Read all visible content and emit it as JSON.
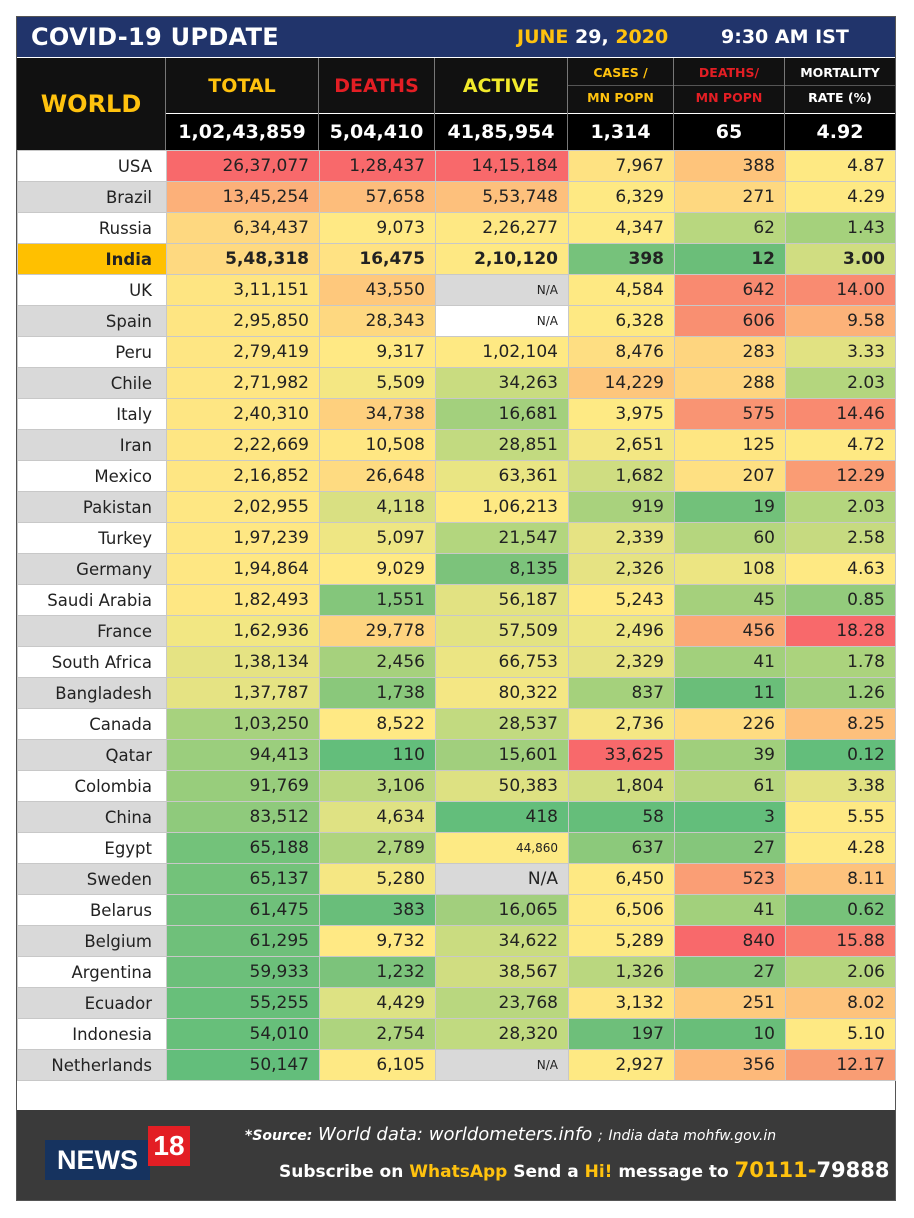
{
  "header": {
    "title": "COVID-19 UPDATE",
    "date_month": "JUNE",
    "date_day": "29,",
    "date_year": "2020",
    "time": "9:30 AM IST"
  },
  "columns": {
    "world": "WORLD",
    "total": "TOTAL",
    "deaths": "DEATHS",
    "active": "ACTIVE",
    "cases_mn_1": "CASES /",
    "cases_mn_2": "MN POPN",
    "deaths_mn_1": "DEATHS/",
    "deaths_mn_2": "MN POPN",
    "mortality_1": "MORTALITY",
    "mortality_2": "RATE (%)"
  },
  "world_totals": {
    "total": "1,02,43,859",
    "deaths": "5,04,410",
    "active": "41,85,954",
    "cases_mn": "1,314",
    "deaths_mn": "65",
    "mortality": "4.92"
  },
  "colors": {
    "header_navy": "#21346b",
    "accent_yellow": "#ffc20e",
    "accent_red": "#e31e24",
    "highlight_row": "#ffc000",
    "heat_green": "#6bbf73",
    "heat_yellow": "#ffe584",
    "heat_red": "#f8696b"
  },
  "rows": [
    {
      "country": "USA",
      "total": "26,37,077",
      "deaths": "1,28,437",
      "active": "14,15,184",
      "cases_mn": "7,967",
      "deaths_mn": "388",
      "mortality": "4.87",
      "bg": [
        "#f8696b",
        "#f8696b",
        "#f8696b",
        "#fee282",
        "#fec47b",
        "#fee983"
      ]
    },
    {
      "country": "Brazil",
      "total": "13,45,254",
      "deaths": "57,658",
      "active": "5,53,748",
      "cases_mn": "6,329",
      "deaths_mn": "271",
      "mortality": "4.29",
      "bg": [
        "#fcb079",
        "#fdbd7b",
        "#fdc07c",
        "#fee983",
        "#fed880",
        "#fee983"
      ]
    },
    {
      "country": "Russia",
      "total": "6,34,437",
      "deaths": "9,073",
      "active": "2,26,277",
      "cases_mn": "4,347",
      "deaths_mn": "62",
      "mortality": "1.43",
      "bg": [
        "#fed880",
        "#ffe984",
        "#fee883",
        "#feea84",
        "#b8d77f",
        "#a5d17c"
      ]
    },
    {
      "country": "India",
      "total": "5,48,318",
      "deaths": "16,475",
      "active": "2,10,120",
      "cases_mn": "398",
      "deaths_mn": "12",
      "mortality": "3.00",
      "bg": [
        "#fed980",
        "#ffe283",
        "#fee883",
        "#76c27b",
        "#6bbe79",
        "#d0dd81"
      ]
    },
    {
      "country": "UK",
      "total": "3,11,151",
      "deaths": "43,550",
      "active": "N/A",
      "cases_mn": "4,584",
      "deaths_mn": "642",
      "mortality": "14.00",
      "bg": [
        "#fee582",
        "#fec87c",
        "#d9d9d9",
        "#fee983",
        "#f98a70",
        "#f98b71"
      ],
      "small_active": true
    },
    {
      "country": "Spain",
      "total": "2,95,850",
      "deaths": "28,343",
      "active": "N/A",
      "cases_mn": "6,328",
      "deaths_mn": "606",
      "mortality": "9.58",
      "bg": [
        "#fee582",
        "#fed880",
        "#ffffff",
        "#fee983",
        "#f98f71",
        "#fcb279"
      ],
      "small_active": true
    },
    {
      "country": "Peru",
      "total": "2,79,419",
      "deaths": "9,317",
      "active": "1,02,104",
      "cases_mn": "8,476",
      "deaths_mn": "283",
      "mortality": "3.33",
      "bg": [
        "#fee683",
        "#ffe984",
        "#fee983",
        "#fede82",
        "#fed57f",
        "#e1e282"
      ]
    },
    {
      "country": "Chile",
      "total": "2,71,982",
      "deaths": "5,509",
      "active": "34,263",
      "cases_mn": "14,229",
      "deaths_mn": "288",
      "mortality": "2.03",
      "bg": [
        "#fee683",
        "#f4e783",
        "#c9dc80",
        "#fdc67c",
        "#fed57f",
        "#b4d67e"
      ]
    },
    {
      "country": "Italy",
      "total": "2,40,310",
      "deaths": "34,738",
      "active": "16,681",
      "cases_mn": "3,975",
      "deaths_mn": "575",
      "mortality": "14.46",
      "bg": [
        "#fee683",
        "#fed07e",
        "#a3d07d",
        "#feea84",
        "#f99473",
        "#f98a70"
      ]
    },
    {
      "country": "Iran",
      "total": "2,22,669",
      "deaths": "10,508",
      "active": "28,851",
      "cases_mn": "2,651",
      "deaths_mn": "125",
      "mortality": "4.72",
      "bg": [
        "#fee683",
        "#ffe783",
        "#c2da80",
        "#f3e783",
        "#fee682",
        "#fee983"
      ]
    },
    {
      "country": "Mexico",
      "total": "2,16,852",
      "deaths": "26,648",
      "active": "63,361",
      "cases_mn": "1,682",
      "deaths_mn": "207",
      "mortality": "12.29",
      "bg": [
        "#fee683",
        "#fedb81",
        "#e9e583",
        "#cfdd81",
        "#fee082",
        "#fa9c74"
      ]
    },
    {
      "country": "Pakistan",
      "total": "2,02,955",
      "deaths": "4,118",
      "active": "1,06,213",
      "cases_mn": "919",
      "deaths_mn": "19",
      "mortality": "2.03",
      "bg": [
        "#fee783",
        "#d9e082",
        "#fee983",
        "#a9d27d",
        "#72c17a",
        "#b4d67e"
      ]
    },
    {
      "country": "Turkey",
      "total": "1,97,239",
      "deaths": "5,097",
      "active": "21,547",
      "cases_mn": "2,339",
      "deaths_mn": "60",
      "mortality": "2.58",
      "bg": [
        "#fee783",
        "#eee683",
        "#b3d67e",
        "#e6e383",
        "#b5d67e",
        "#c6da80"
      ]
    },
    {
      "country": "Germany",
      "total": "1,94,864",
      "deaths": "9,029",
      "active": "8,135",
      "cases_mn": "2,326",
      "deaths_mn": "108",
      "mortality": "4.63",
      "bg": [
        "#fee783",
        "#ffe984",
        "#7cc37b",
        "#e6e383",
        "#ece582",
        "#fee983"
      ]
    },
    {
      "country": "Saudi Arabia",
      "total": "1,82,493",
      "deaths": "1,551",
      "active": "56,187",
      "cases_mn": "5,243",
      "deaths_mn": "45",
      "mortality": "0.85",
      "bg": [
        "#fee783",
        "#84c67b",
        "#e2e282",
        "#fee983",
        "#a5d07c",
        "#93cb7c"
      ]
    },
    {
      "country": "France",
      "total": "1,62,936",
      "deaths": "29,778",
      "active": "57,509",
      "cases_mn": "2,496",
      "deaths_mn": "456",
      "mortality": "18.28",
      "bg": [
        "#f2e783",
        "#fed47f",
        "#e3e382",
        "#ede683",
        "#fba976",
        "#f8696b"
      ]
    },
    {
      "country": "South Africa",
      "total": "1,38,134",
      "deaths": "2,456",
      "active": "66,753",
      "cases_mn": "2,329",
      "deaths_mn": "41",
      "mortality": "1.78",
      "bg": [
        "#e5e383",
        "#a6d17d",
        "#ebe583",
        "#e6e383",
        "#a2d07c",
        "#abd37d"
      ]
    },
    {
      "country": "Bangladesh",
      "total": "1,37,787",
      "deaths": "1,738",
      "active": "80,322",
      "cases_mn": "837",
      "deaths_mn": "11",
      "mortality": "1.26",
      "bg": [
        "#e5e383",
        "#8ac87b",
        "#f4e784",
        "#a5d17c",
        "#6abe79",
        "#9fcf7d"
      ]
    },
    {
      "country": "Canada",
      "total": "1,03,250",
      "deaths": "8,522",
      "active": "28,537",
      "cases_mn": "2,736",
      "deaths_mn": "226",
      "mortality": "8.25",
      "bg": [
        "#a7d27e",
        "#ffe984",
        "#c2da80",
        "#f5e784",
        "#fedc81",
        "#fdc07c"
      ]
    },
    {
      "country": "Qatar",
      "total": "94,413",
      "deaths": "110",
      "active": "15,601",
      "cases_mn": "33,625",
      "deaths_mn": "39",
      "mortality": "0.12",
      "bg": [
        "#9bce7d",
        "#63be7b",
        "#a1cf7d",
        "#f8696b",
        "#a0cf7c",
        "#63be7b"
      ]
    },
    {
      "country": "Colombia",
      "total": "91,769",
      "deaths": "3,106",
      "active": "50,383",
      "cases_mn": "1,804",
      "deaths_mn": "61",
      "mortality": "3.38",
      "bg": [
        "#98cd7c",
        "#bcd87f",
        "#dde182",
        "#d2de81",
        "#b7d67f",
        "#e2e282"
      ]
    },
    {
      "country": "China",
      "total": "83,512",
      "deaths": "4,634",
      "active": "418",
      "cases_mn": "58",
      "deaths_mn": "3",
      "mortality": "5.55",
      "bg": [
        "#8fca7c",
        "#dfe283",
        "#63be7b",
        "#65be7a",
        "#63be7b",
        "#fee983"
      ]
    },
    {
      "country": "Egypt",
      "total": "65,188",
      "deaths": "2,789",
      "active": "44,860",
      "cases_mn": "637",
      "deaths_mn": "27",
      "mortality": "4.28",
      "bg": [
        "#73c27a",
        "#afd47e",
        "#fdea84",
        "#8cc97b",
        "#85c67b",
        "#fee983"
      ],
      "small_active": true
    },
    {
      "country": "Sweden",
      "total": "65,137",
      "deaths": "5,280",
      "active": "N/A",
      "cases_mn": "6,450",
      "deaths_mn": "523",
      "mortality": "8.11",
      "bg": [
        "#73c27a",
        "#f5e783",
        "#d9d9d9",
        "#fee983",
        "#fa9e75",
        "#fdc27c"
      ]
    },
    {
      "country": "Belarus",
      "total": "61,475",
      "deaths": "383",
      "active": "16,065",
      "cases_mn": "6,506",
      "deaths_mn": "41",
      "mortality": "0.62",
      "bg": [
        "#6fc07a",
        "#69be7a",
        "#a2cf7d",
        "#fee983",
        "#a2d07c",
        "#77c27a"
      ]
    },
    {
      "country": "Belgium",
      "total": "61,295",
      "deaths": "9,732",
      "active": "34,622",
      "cases_mn": "5,289",
      "deaths_mn": "840",
      "mortality": "15.88",
      "bg": [
        "#6fc07a",
        "#ffe984",
        "#cadc80",
        "#fee983",
        "#f8696b",
        "#f97e6e"
      ]
    },
    {
      "country": "Argentina",
      "total": "59,933",
      "deaths": "1,232",
      "active": "38,567",
      "cases_mn": "1,326",
      "deaths_mn": "27",
      "mortality": "2.06",
      "bg": [
        "#6cbf7a",
        "#7cc37b",
        "#d0dd81",
        "#bad77f",
        "#85c67b",
        "#b5d67e"
      ]
    },
    {
      "country": "Ecuador",
      "total": "55,255",
      "deaths": "4,429",
      "active": "23,768",
      "cases_mn": "3,132",
      "deaths_mn": "251",
      "mortality": "8.02",
      "bg": [
        "#68bf7a",
        "#dde283",
        "#b9d77f",
        "#fee582",
        "#feca7d",
        "#fdc37c"
      ]
    },
    {
      "country": "Indonesia",
      "total": "54,010",
      "deaths": "2,754",
      "active": "28,320",
      "cases_mn": "197",
      "deaths_mn": "10",
      "mortality": "5.10",
      "bg": [
        "#67bf7a",
        "#aed47e",
        "#c1da80",
        "#6ebf7a",
        "#69be79",
        "#fee983"
      ]
    },
    {
      "country": "Netherlands",
      "total": "50,147",
      "deaths": "6,105",
      "active": "N/A",
      "cases_mn": "2,927",
      "deaths_mn": "356",
      "mortality": "12.17",
      "bg": [
        "#63be7b",
        "#fee984",
        "#d9d9d9",
        "#fee983",
        "#fdb97a",
        "#f99d74"
      ],
      "small_active": true
    }
  ],
  "footer": {
    "logo_news": "NEWS",
    "logo_18": "18",
    "source_label": "*Source:",
    "source_world": "World data: worldometers.info",
    "source_sep": ";",
    "source_india": "India data mohfw.gov.in",
    "subscribe_pre": "Subscribe on",
    "whatsapp": "WhatsApp",
    "send_a": "Send a",
    "hi": "Hi!",
    "message_to": "message to",
    "phone_a": "70111-",
    "phone_b": "79888"
  }
}
